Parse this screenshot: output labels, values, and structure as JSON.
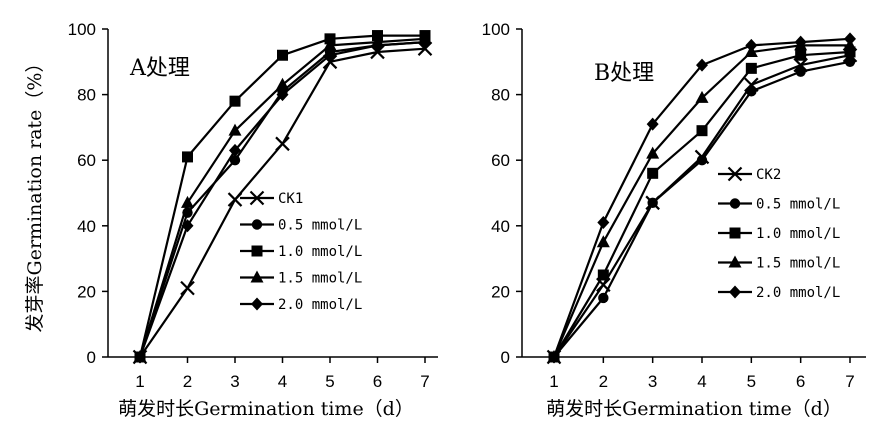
{
  "chart_data": [
    {
      "type": "line",
      "title": "A处理",
      "xlabel": "萌发时长Germination time（d）",
      "ylabel": "发芽率Germination rate（%）",
      "x": [
        1,
        2,
        3,
        4,
        5,
        6,
        7
      ],
      "xticks": [
        "1",
        "2",
        "3",
        "4",
        "5",
        "6",
        "7"
      ],
      "ylim": [
        0,
        100
      ],
      "yticks": [
        "0",
        "20",
        "40",
        "60",
        "80",
        "100"
      ],
      "grid": false,
      "legend_position": "lower-right",
      "series": [
        {
          "name": "CK1",
          "marker": "x",
          "values": [
            0,
            21,
            48,
            65,
            90,
            93,
            94
          ]
        },
        {
          "name": "0.5 mmol/L",
          "marker": "circle",
          "values": [
            0,
            44,
            60,
            81,
            93,
            95,
            96
          ]
        },
        {
          "name": "1.0 mmol/L",
          "marker": "square",
          "values": [
            0,
            61,
            78,
            92,
            97,
            98,
            98
          ]
        },
        {
          "name": "1.5 mmol/L",
          "marker": "triangle",
          "values": [
            0,
            47,
            69,
            83,
            95,
            96,
            97
          ]
        },
        {
          "name": "2.0 mmol/L",
          "marker": "diamond",
          "values": [
            0,
            40,
            63,
            80,
            92,
            95,
            96
          ]
        }
      ]
    },
    {
      "type": "line",
      "title": "B处理",
      "xlabel": "萌发时长Germination time（d）",
      "ylabel": "",
      "x": [
        1,
        2,
        3,
        4,
        5,
        6,
        7
      ],
      "xticks": [
        "1",
        "2",
        "3",
        "4",
        "5",
        "6",
        "7"
      ],
      "ylim": [
        0,
        100
      ],
      "yticks": [
        "0",
        "20",
        "40",
        "60",
        "80",
        "100"
      ],
      "grid": false,
      "legend_position": "lower-right",
      "series": [
        {
          "name": "CK2",
          "marker": "x",
          "values": [
            0,
            22,
            47,
            61,
            83,
            89,
            92
          ]
        },
        {
          "name": "0.5 mmol/L",
          "marker": "circle",
          "values": [
            0,
            18,
            47,
            60,
            81,
            87,
            90
          ]
        },
        {
          "name": "1.0 mmol/L",
          "marker": "square",
          "values": [
            0,
            25,
            56,
            69,
            88,
            92,
            93
          ]
        },
        {
          "name": "1.5 mmol/L",
          "marker": "triangle",
          "values": [
            0,
            35,
            62,
            79,
            93,
            95,
            95
          ]
        },
        {
          "name": "2.0 mmol/L",
          "marker": "diamond",
          "values": [
            0,
            41,
            71,
            89,
            95,
            96,
            97
          ]
        }
      ]
    }
  ]
}
